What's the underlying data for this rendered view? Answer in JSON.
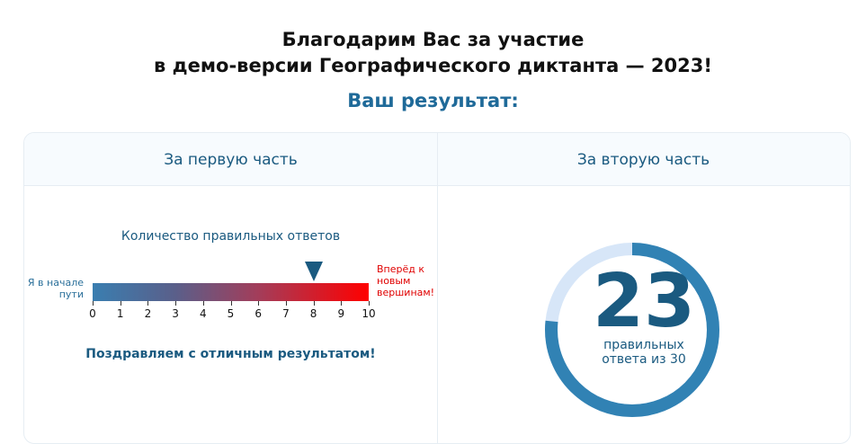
{
  "header": {
    "title_line1": "Благодарим Вас за участие",
    "title_line2": "в демо-версии Географического диктанта — 2023!",
    "subtitle": "Ваш результат:"
  },
  "part1": {
    "title": "За первую часть",
    "scale_label": "Количество правильных ответов",
    "left_label_1": "Я в начале",
    "left_label_2": "пути",
    "right_label_1": "Вперёд к",
    "right_label_2": "новым",
    "right_label_3": "вершинам!",
    "scale_ticks": [
      "0",
      "1",
      "2",
      "3",
      "4",
      "5",
      "6",
      "7",
      "8",
      "9",
      "10"
    ],
    "scale_min": 0,
    "scale_max": 10,
    "score": 8,
    "message": "Поздравляем с отличным результатом!",
    "colors": {
      "bar_start": "#3a7eb0",
      "bar_end": "#ff0000",
      "marker": "#1a5a80"
    }
  },
  "part2": {
    "title": "За вторую часть",
    "score": "23",
    "score_value": 23,
    "total": 30,
    "caption_1": "правильных",
    "caption_2": "ответа из 30",
    "colors": {
      "ring_fill": "#3182b4",
      "ring_track": "#d7e6f8"
    }
  }
}
